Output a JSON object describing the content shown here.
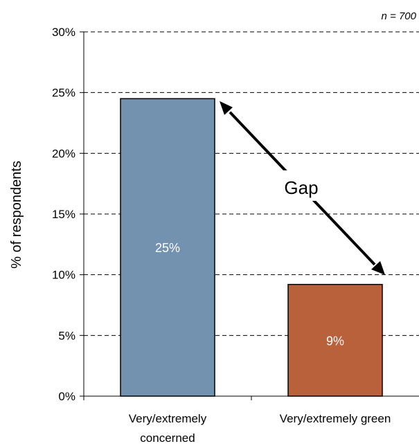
{
  "chart_data": {
    "type": "bar",
    "categories": [
      "Very/extremely concerned",
      "Very/extremely green"
    ],
    "category_lines": [
      [
        "Very/extremely",
        "concerned"
      ],
      [
        "Very/extremely green"
      ]
    ],
    "values": [
      24.5,
      9.2
    ],
    "data_labels": [
      "25%",
      "9%"
    ],
    "colors": [
      "#7292AF",
      "#B8613A"
    ],
    "ylabel": "% of respondents",
    "ylim": [
      0,
      30
    ],
    "yticks": [
      0,
      5,
      10,
      15,
      20,
      25,
      30
    ],
    "ytick_labels": [
      "0%",
      "5%",
      "10%",
      "15%",
      "20%",
      "25%",
      "30%"
    ],
    "grid": true,
    "annotation": "Gap",
    "sample_note": "n = 700"
  }
}
